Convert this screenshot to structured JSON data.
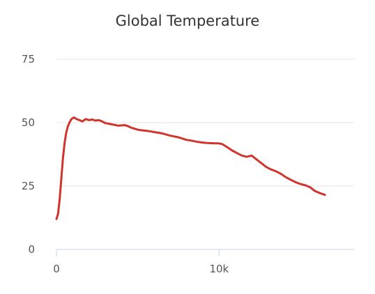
{
  "chart_data": {
    "type": "line",
    "title": "Global Temperature",
    "xlabel": "",
    "ylabel": "",
    "xlim": [
      0,
      18300
    ],
    "ylim": [
      0,
      75
    ],
    "x_ticks": [
      0,
      10000
    ],
    "x_tick_labels": [
      "0",
      "10k"
    ],
    "y_ticks": [
      0,
      25,
      50,
      75
    ],
    "y_tick_labels": [
      "0",
      "25",
      "50",
      "75"
    ],
    "grid": true,
    "legend": "none",
    "series": [
      {
        "color": "#d0342c",
        "x": [
          0,
          100,
          200,
          300,
          400,
          500,
          600,
          700,
          800,
          900,
          1000,
          1100,
          1200,
          1400,
          1600,
          1800,
          2000,
          2200,
          2400,
          2600,
          2800,
          3000,
          3200,
          3400,
          3600,
          3800,
          4000,
          4200,
          4400,
          4600,
          4800,
          5000,
          5200,
          5500,
          5800,
          6000,
          6300,
          6600,
          6900,
          7200,
          7500,
          7800,
          8000,
          8300,
          8600,
          8900,
          9200,
          9500,
          9800,
          10000,
          10200,
          10500,
          10800,
          11100,
          11400,
          11700,
          12000,
          12300,
          12600,
          12900,
          13200,
          13500,
          13800,
          14100,
          14400,
          14700,
          15000,
          15300,
          15600,
          15900,
          16200,
          16500
        ],
        "y": [
          12,
          14,
          20,
          28,
          36,
          42,
          46,
          48.5,
          50,
          51.2,
          51.8,
          52,
          51.5,
          51,
          50.5,
          51.4,
          51,
          51.2,
          50.8,
          51,
          50.5,
          49.8,
          49.6,
          49.3,
          49.1,
          48.8,
          48.9,
          49,
          48.6,
          48,
          47.6,
          47.2,
          47,
          46.8,
          46.5,
          46.3,
          46,
          45.6,
          45,
          44.6,
          44.2,
          43.6,
          43.2,
          42.9,
          42.5,
          42.2,
          42,
          41.9,
          41.8,
          41.8,
          41.5,
          40.3,
          39,
          38,
          37,
          36.5,
          37,
          35.5,
          34,
          32.5,
          31.5,
          30.8,
          29.8,
          28.5,
          27.5,
          26.5,
          25.8,
          25.3,
          24.5,
          23,
          22.2,
          21.5
        ]
      }
    ]
  }
}
